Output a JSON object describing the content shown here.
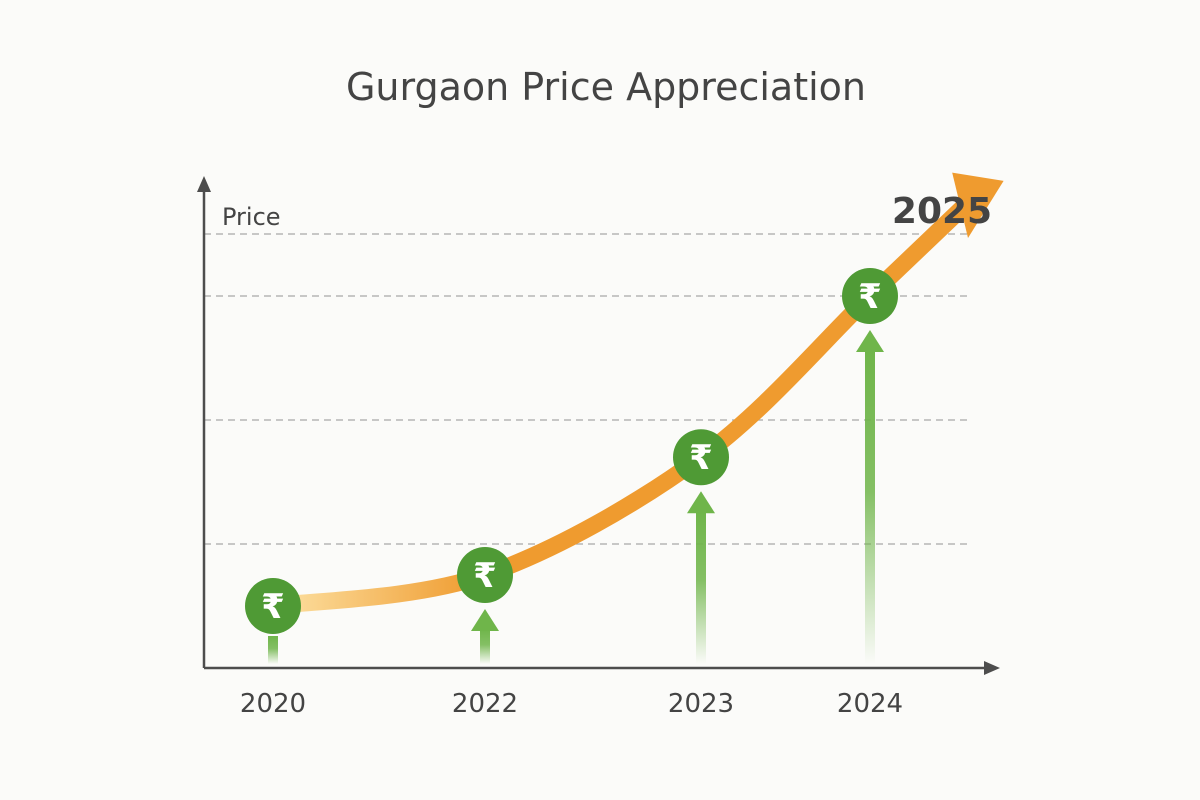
{
  "chart_data": {
    "type": "line",
    "title": "Gurgaon Price Appreciation",
    "xlabel": "",
    "ylabel": "Price",
    "categories": [
      "2020",
      "2022",
      "2023",
      "2024"
    ],
    "end_label": "2025",
    "series": [
      {
        "values": [
          1.0,
          1.5,
          3.4,
          6.0
        ]
      }
    ],
    "ylim": [
      0,
      8
    ],
    "grid": true,
    "marker_symbol": "₹",
    "icons": [
      "rupee-coin-icon",
      "up-arrow-icon"
    ],
    "colors": {
      "curve_start": "#fde3a6",
      "curve_end": "#ef9b2f",
      "marker": "#4f9a35",
      "marker_symbol": "#ffffff",
      "arrow": "#6fb54a",
      "axis": "#4d4d4d",
      "grid": "#a8a8a8",
      "text": "#444444"
    }
  }
}
